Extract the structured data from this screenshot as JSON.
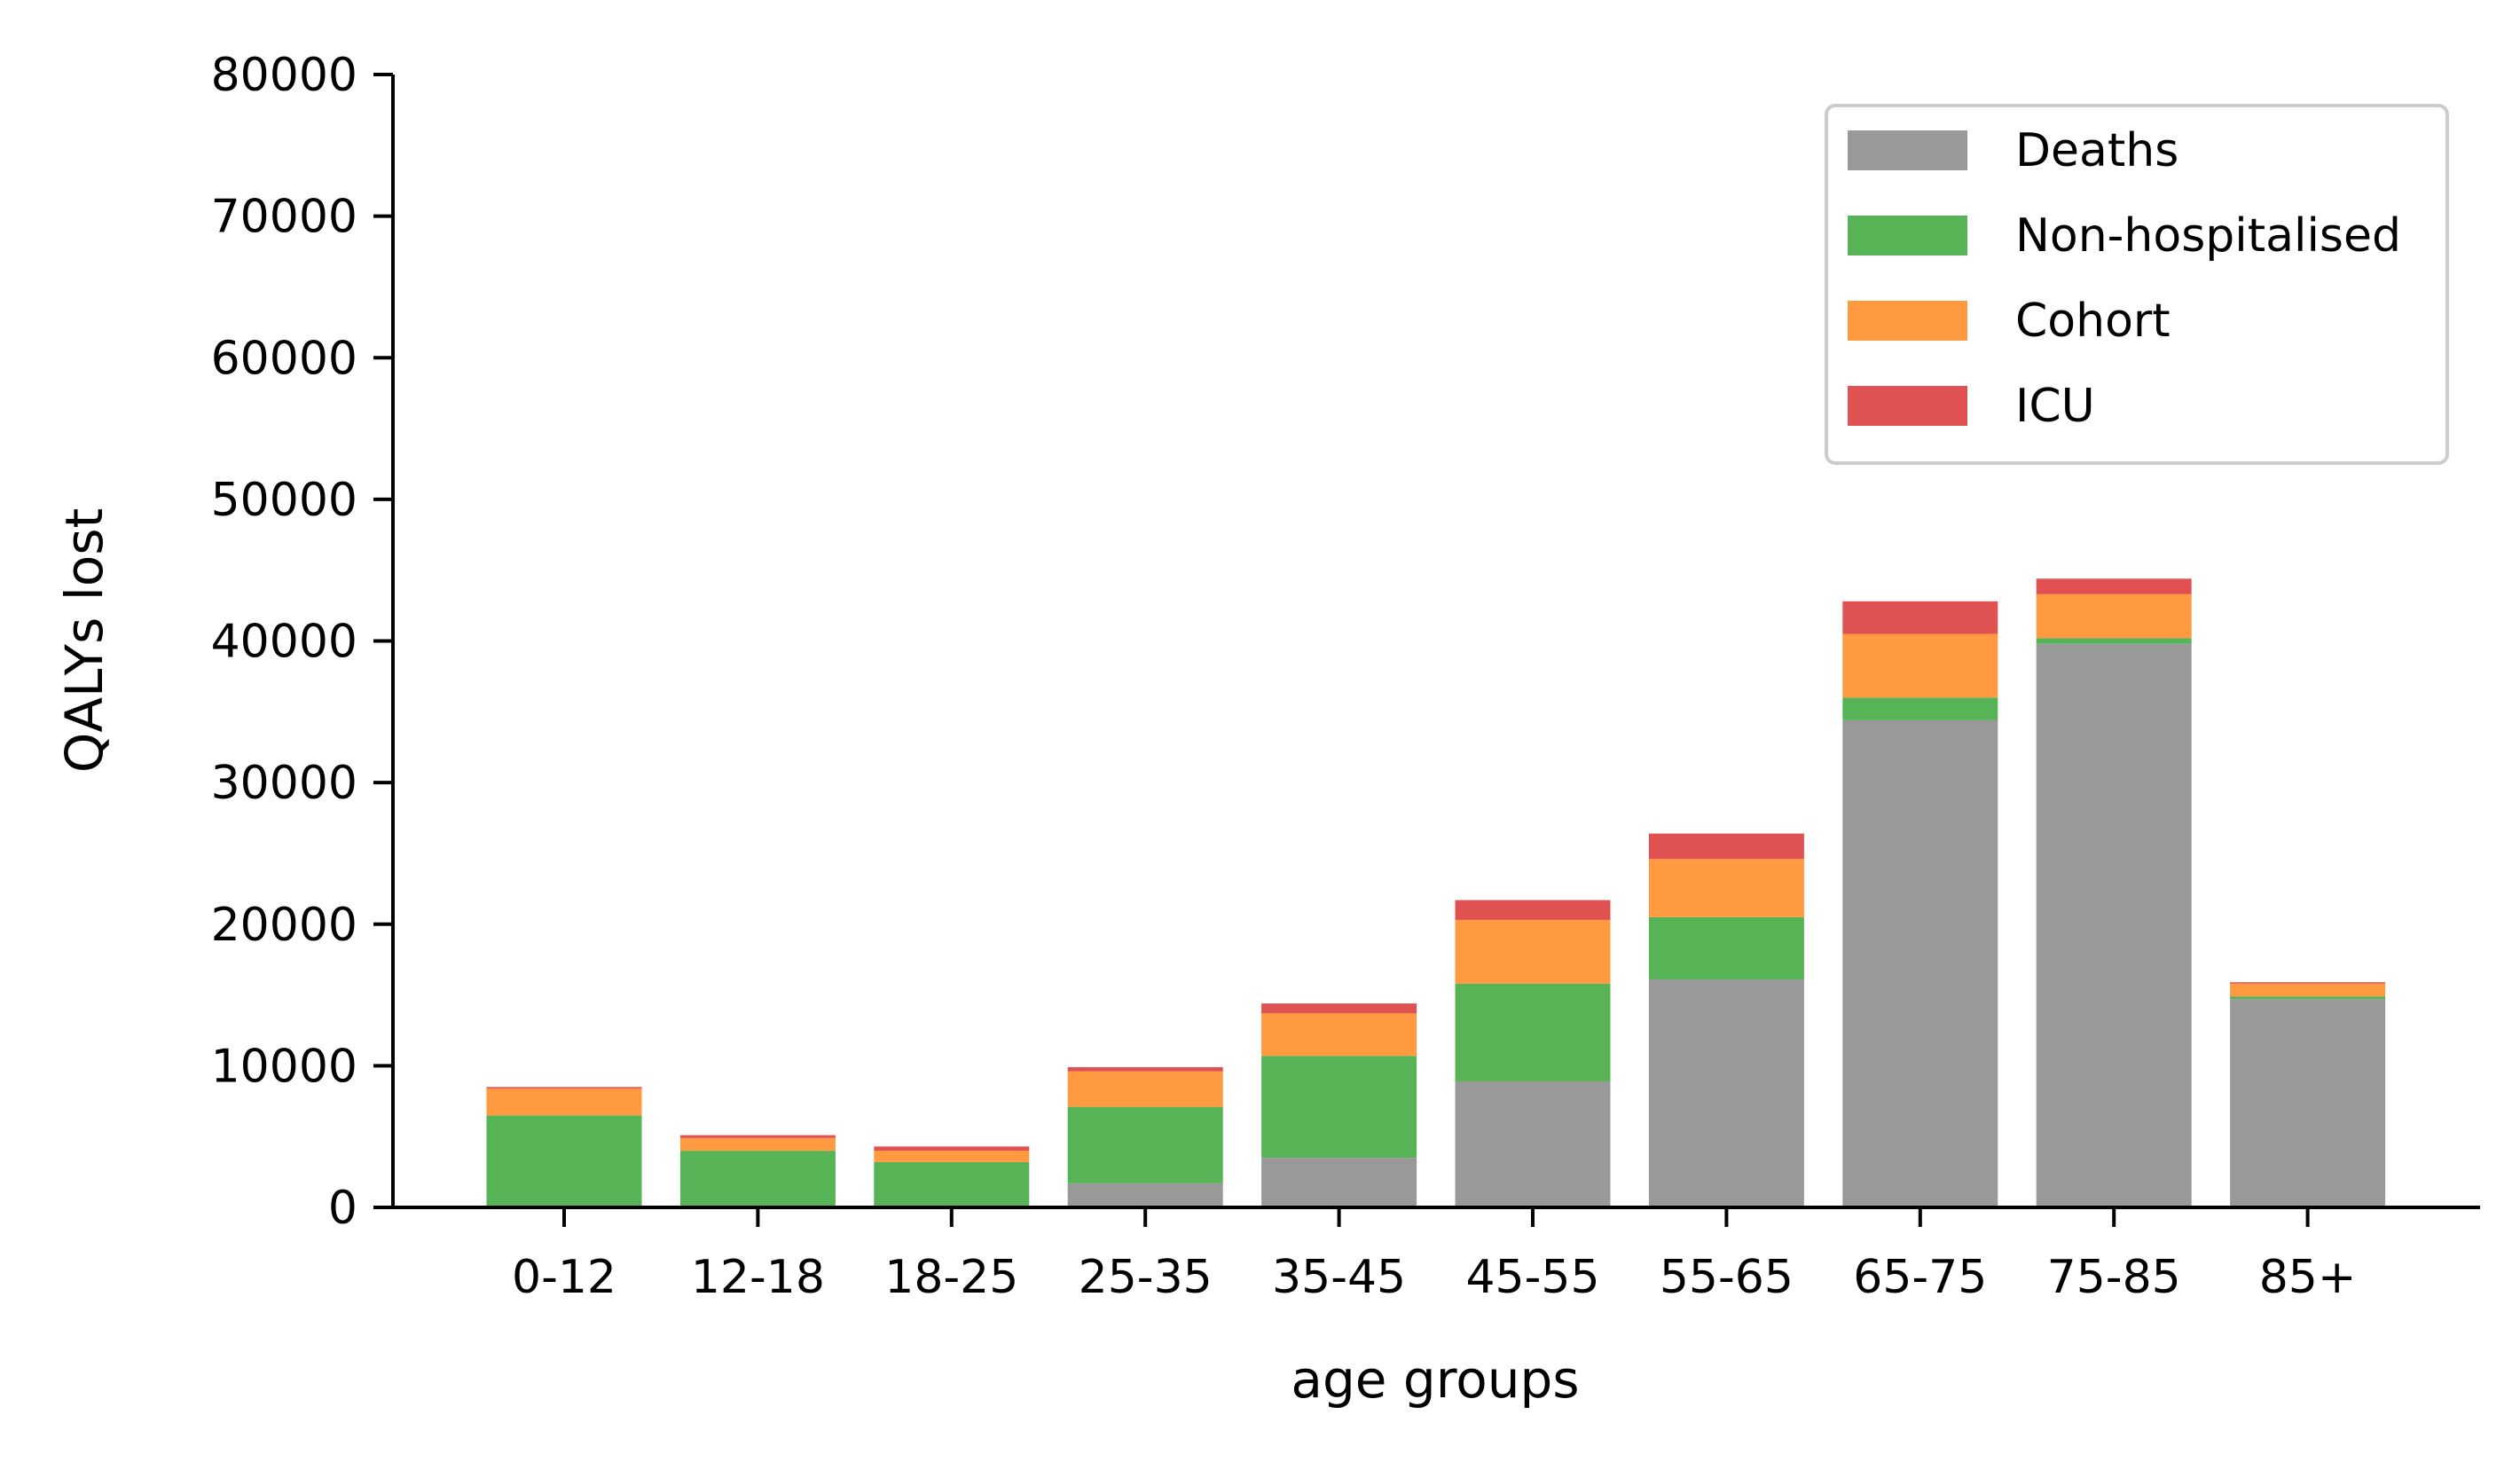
{
  "chart_data": {
    "type": "bar",
    "stacked": true,
    "categories": [
      "0-12",
      "12-18",
      "18-25",
      "25-35",
      "35-45",
      "45-55",
      "55-65",
      "65-75",
      "75-85",
      "85+"
    ],
    "series": [
      {
        "name": "Deaths",
        "color": "#999999",
        "values": [
          0,
          0,
          0,
          1700,
          3500,
          8900,
          16100,
          34400,
          39800,
          14700
        ]
      },
      {
        "name": "Non-hospitalised",
        "color": "#56b356",
        "values": [
          6500,
          4000,
          3200,
          5400,
          7200,
          6900,
          4400,
          1600,
          400,
          200
        ]
      },
      {
        "name": "Cohort",
        "color": "#ff9a40",
        "values": [
          1900,
          900,
          800,
          2500,
          3000,
          4500,
          4100,
          4500,
          3100,
          900
        ]
      },
      {
        "name": "ICU",
        "color": "#e05252",
        "values": [
          100,
          200,
          300,
          300,
          700,
          1400,
          1800,
          2300,
          1100,
          100
        ]
      }
    ],
    "xlabel": "age groups",
    "ylabel": "QALYs lost",
    "ylim": [
      0,
      80000
    ],
    "yticks": [
      0,
      10000,
      20000,
      30000,
      40000,
      50000,
      60000,
      70000,
      80000
    ],
    "grid": false,
    "legend_position": "top-right"
  }
}
